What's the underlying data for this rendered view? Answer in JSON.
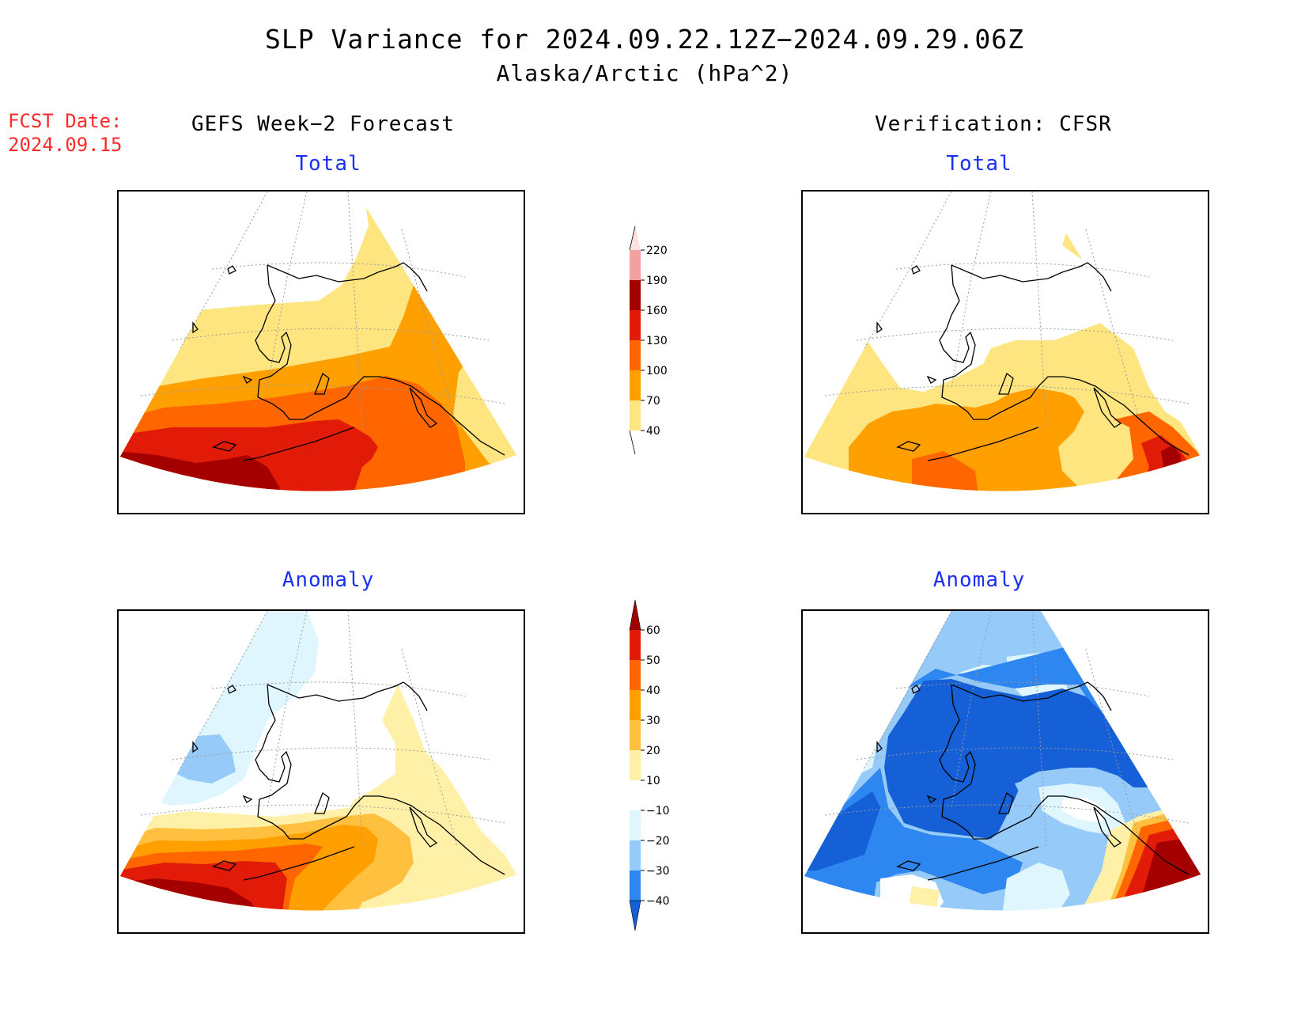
{
  "title": "SLP Variance for 2024.09.22.12Z−2024.09.29.06Z",
  "subtitle": "Alaska/Arctic (hPa^2)",
  "forecast_date": {
    "label": "FCST Date:",
    "value": "2024.09.15"
  },
  "columns": {
    "left": "GEFS Week−2 Forecast",
    "right": "Verification: CFSR"
  },
  "panels": {
    "forecast_total": {
      "title": "Total"
    },
    "verify_total": {
      "title": "Total"
    },
    "forecast_anomaly": {
      "title": "Anomaly"
    },
    "verify_anomaly": {
      "title": "Anomaly"
    }
  },
  "colorbars": {
    "total": {
      "labels": [
        "40",
        "70",
        "100",
        "130",
        "160",
        "190",
        "220"
      ],
      "colors": [
        "#ffffff",
        "#ffe57f",
        "#ffa000",
        "#ff6600",
        "#e21a08",
        "#a50000",
        "#f2a0a0",
        "#fde0e0"
      ]
    },
    "anomaly": {
      "labels": [
        "−40",
        "−30",
        "−20",
        "−10",
        "10",
        "20",
        "30",
        "40",
        "50",
        "60"
      ],
      "colors": [
        "#1560d6",
        "#2e86f0",
        "#96caf8",
        "#e0f6ff",
        "#ffffff",
        "#fff0a8",
        "#ffc040",
        "#ffa000",
        "#ff6600",
        "#e21a08",
        "#a50000"
      ]
    }
  },
  "palette": {
    "total": {
      "c40": "#ffe57f",
      "c70": "#ffa000",
      "c100": "#ff6600",
      "c130": "#e21a08",
      "c160": "#a50000",
      "c190": "#f2a0a0"
    },
    "anom": {
      "n40": "#1560d6",
      "n30": "#2e86f0",
      "n20": "#96caf8",
      "n10": "#e0f6ff",
      "p10": "#fff0a8",
      "p20": "#ffc040",
      "p30": "#ffa000",
      "p40": "#ff6600",
      "p50": "#e21a08",
      "p60": "#a50000"
    }
  }
}
